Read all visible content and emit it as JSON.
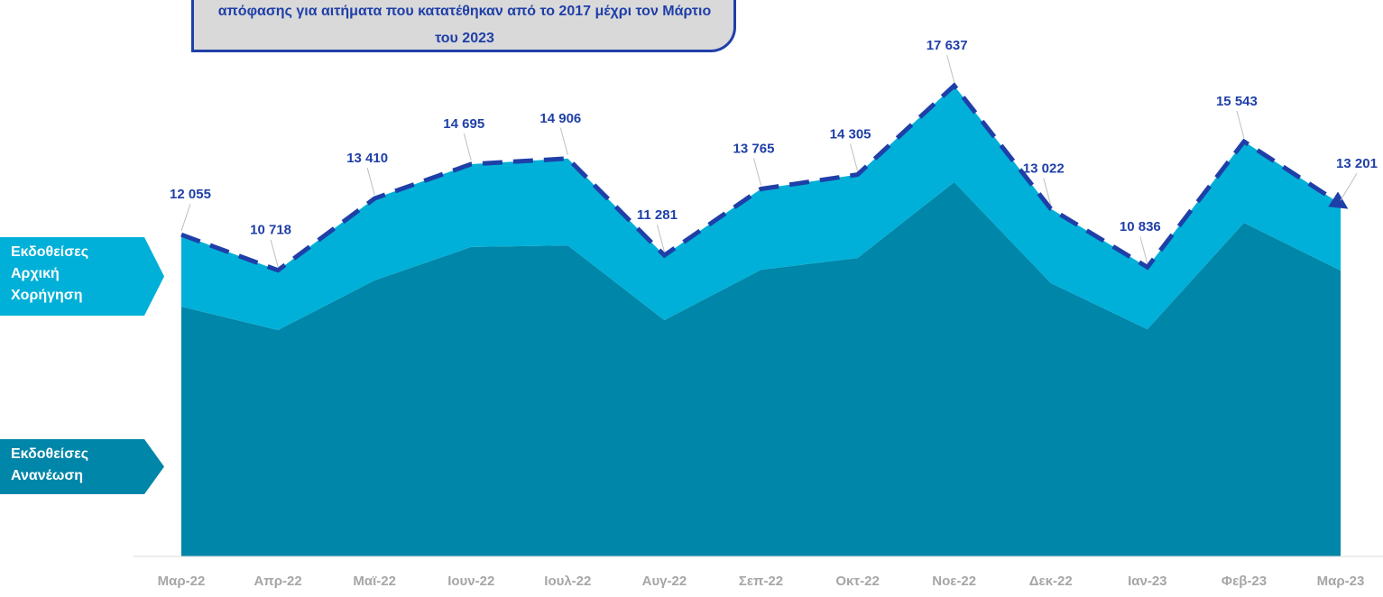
{
  "chart_data": {
    "type": "area",
    "stacked": true,
    "title": "απόφασης για αιτήματα που κατατέθηκαν από το 2017 μέχρι τον Μάρτιο του 2023",
    "categories": [
      "Μαρ-22",
      "Απρ-22",
      "Μαϊ-22",
      "Ιουν-22",
      "Ιουλ-22",
      "Αυγ-22",
      "Σεπ-22",
      "Οκτ-22",
      "Νοε-22",
      "Δεκ-22",
      "Ιαν-23",
      "Φεβ-23",
      "Μαρ-23"
    ],
    "series": [
      {
        "name": "Εκδοθείσες Ανανέωση",
        "color": "#0086a8",
        "values": [
          9360,
          8480,
          10340,
          11590,
          11650,
          8850,
          10740,
          11180,
          14020,
          10240,
          8510,
          12500,
          10710
        ]
      },
      {
        "name": "Εκδοθείσες Αρχική Χορήγηση",
        "color": "#00b0d8",
        "values": [
          2695,
          2238,
          3070,
          3105,
          3256,
          2431,
          3025,
          3125,
          3617,
          2782,
          2326,
          3043,
          2491
        ]
      }
    ],
    "totals": {
      "color": "#1f3fa8",
      "values": [
        12055,
        10718,
        13410,
        14695,
        14906,
        11281,
        13765,
        14305,
        17637,
        13022,
        10836,
        15543,
        13201
      ],
      "value_labels": [
        "12 055",
        "10 718",
        "13 410",
        "14 695",
        "14 906",
        "11 281",
        "13 765",
        "14 305",
        "17 637",
        "13 022",
        "10 836",
        "15 543",
        "13 201"
      ]
    },
    "ylim": [
      0,
      20000
    ]
  }
}
